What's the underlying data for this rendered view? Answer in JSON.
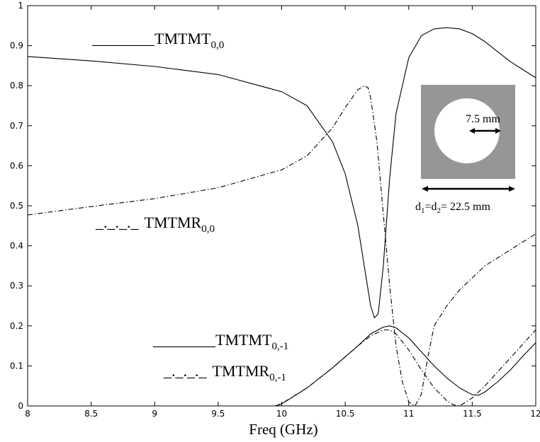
{
  "chart_data": {
    "type": "line",
    "xlabel": "Freq (GHz)",
    "ylabel": "",
    "title": "",
    "xlim": [
      8,
      12
    ],
    "ylim": [
      0,
      1
    ],
    "xticks": [
      8,
      8.5,
      9,
      9.5,
      10,
      10.5,
      11,
      11.5,
      12
    ],
    "yticks": [
      0,
      0.1,
      0.2,
      0.3,
      0.4,
      0.5,
      0.6,
      0.7,
      0.8,
      0.9,
      1
    ],
    "xtick_labels": [
      "8",
      "8.5",
      "9",
      "9.5",
      "10",
      "10.5",
      "11",
      "11.5",
      "12"
    ],
    "ytick_labels": [
      "0",
      "0.1",
      "0.2",
      "0.3",
      "0.4",
      "0.5",
      "0.6",
      "0.7",
      "0.8",
      "0.9",
      "1"
    ],
    "grid": false,
    "series": [
      {
        "name": "TMTMT0,0",
        "style": "solid",
        "x": [
          8.0,
          8.5,
          9.0,
          9.5,
          10.0,
          10.2,
          10.4,
          10.5,
          10.6,
          10.65,
          10.7,
          10.73,
          10.76,
          10.8,
          10.85,
          10.9,
          11.0,
          11.1,
          11.2,
          11.3,
          11.4,
          11.5,
          11.6,
          11.7,
          11.8,
          11.9,
          12.0
        ],
        "y": [
          0.873,
          0.862,
          0.848,
          0.828,
          0.785,
          0.75,
          0.66,
          0.58,
          0.45,
          0.35,
          0.25,
          0.22,
          0.23,
          0.35,
          0.57,
          0.73,
          0.87,
          0.925,
          0.942,
          0.945,
          0.942,
          0.93,
          0.91,
          0.885,
          0.86,
          0.84,
          0.82
        ]
      },
      {
        "name": "TMTMR0,0",
        "style": "dashdot",
        "x": [
          8.0,
          8.5,
          9.0,
          9.5,
          10.0,
          10.2,
          10.4,
          10.5,
          10.6,
          10.65,
          10.68,
          10.7,
          10.75,
          10.8,
          10.85,
          10.9,
          10.95,
          11.0,
          11.05,
          11.1,
          11.15,
          11.2,
          11.3,
          11.4,
          11.5,
          11.6,
          11.7,
          11.8,
          11.9,
          12.0
        ],
        "y": [
          0.477,
          0.498,
          0.518,
          0.545,
          0.59,
          0.625,
          0.695,
          0.745,
          0.79,
          0.8,
          0.795,
          0.77,
          0.66,
          0.48,
          0.3,
          0.15,
          0.06,
          0.01,
          0.0,
          0.03,
          0.12,
          0.2,
          0.25,
          0.29,
          0.32,
          0.35,
          0.37,
          0.39,
          0.41,
          0.43
        ]
      },
      {
        "name": "TMTMT0,-1",
        "style": "solid",
        "x": [
          9.95,
          10.0,
          10.2,
          10.4,
          10.6,
          10.7,
          10.8,
          10.85,
          10.9,
          11.0,
          11.1,
          11.2,
          11.3,
          11.4,
          11.5,
          11.55,
          11.6,
          11.7,
          11.8,
          11.9,
          12.0
        ],
        "y": [
          0.0,
          0.005,
          0.045,
          0.095,
          0.15,
          0.18,
          0.197,
          0.2,
          0.195,
          0.17,
          0.135,
          0.1,
          0.07,
          0.045,
          0.028,
          0.027,
          0.035,
          0.06,
          0.09,
          0.125,
          0.158
        ]
      },
      {
        "name": "TMTMR0,-1",
        "style": "dashdot",
        "x": [
          9.95,
          10.0,
          10.2,
          10.4,
          10.6,
          10.7,
          10.8,
          10.85,
          10.9,
          11.0,
          11.1,
          11.2,
          11.3,
          11.35,
          11.4,
          11.5,
          11.6,
          11.7,
          11.8,
          11.9,
          12.0
        ],
        "y": [
          0.0,
          0.006,
          0.045,
          0.095,
          0.15,
          0.175,
          0.19,
          0.19,
          0.18,
          0.14,
          0.09,
          0.045,
          0.013,
          0.003,
          0.0,
          0.02,
          0.05,
          0.085,
          0.12,
          0.155,
          0.19
        ]
      }
    ],
    "legend_entries": [
      {
        "marker": "________",
        "label": "TMTMT",
        "subscript": "0,0"
      },
      {
        "marker": "_._._._",
        "label": "TMTMR",
        "subscript": "0,0"
      },
      {
        "marker": "________",
        "label": "TMTMT",
        "subscript": "0,-1"
      },
      {
        "marker": "_._._._",
        "label": "TMTMR",
        "subscript": "0,-1"
      }
    ],
    "annotations": {
      "hole_size": "7.5 mm",
      "period_prefix_1": "d",
      "period_sub_1": "1",
      "period_mid": "=d",
      "period_sub_2": "2",
      "period_value": "= 22.5 mm"
    },
    "colors": {
      "line": "#000000",
      "inset_fill": "#969696",
      "hole_fill": "#ffffff"
    }
  }
}
